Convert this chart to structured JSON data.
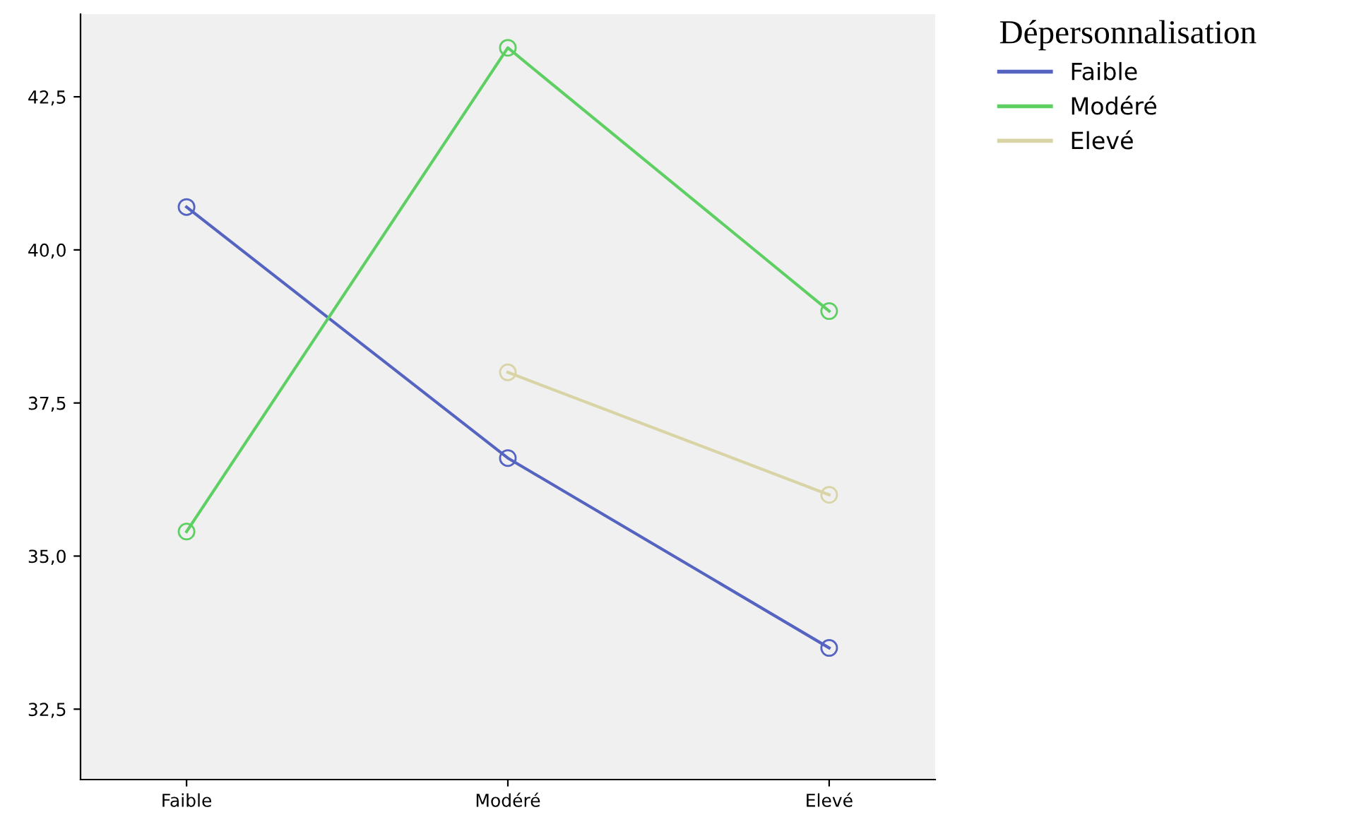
{
  "chart_data": {
    "type": "line",
    "legend_title": "Dépersonnalisation",
    "categories": [
      "Faible",
      "Modéré",
      "Elevé"
    ],
    "series": [
      {
        "name": "Faible",
        "color": "#5563c1",
        "values": [
          40.7,
          36.6,
          33.5
        ]
      },
      {
        "name": "Modéré",
        "color": "#5ecf62",
        "values": [
          35.4,
          43.3,
          39.0
        ]
      },
      {
        "name": "Elevé",
        "color": "#d9d4a6",
        "values": [
          null,
          38.0,
          36.0
        ]
      }
    ],
    "ylim": [
      31.35,
      43.85
    ],
    "yticks": [
      {
        "value": 32.5,
        "label": "32,5"
      },
      {
        "value": 35.0,
        "label": "35,0"
      },
      {
        "value": 37.5,
        "label": "37,5"
      },
      {
        "value": 40.0,
        "label": "40,0"
      },
      {
        "value": 42.5,
        "label": "42,5"
      }
    ],
    "marker": "circle",
    "line_style": "solid",
    "grid": false,
    "legend": "right"
  }
}
